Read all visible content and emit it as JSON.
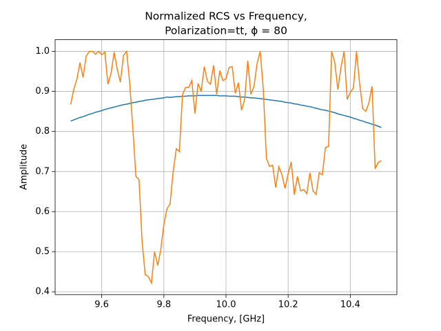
{
  "chart_data": {
    "type": "line",
    "title": [
      "Normalized RCS vs Frequency,",
      "Polarization=tt, ϕ = 80"
    ],
    "x_label": "Frequency, [GHz]",
    "y_label": "Amplitude",
    "x": [
      9.5,
      9.51,
      9.52,
      9.53,
      9.54,
      9.55,
      9.56,
      9.57,
      9.58,
      9.59,
      9.6,
      9.61,
      9.62,
      9.63,
      9.64,
      9.65,
      9.66,
      9.67,
      9.68,
      9.69,
      9.7,
      9.71,
      9.72,
      9.73,
      9.74,
      9.75,
      9.76,
      9.77,
      9.78,
      9.79,
      9.8,
      9.81,
      9.82,
      9.83,
      9.84,
      9.85,
      9.86,
      9.87,
      9.88,
      9.89,
      9.9,
      9.91,
      9.92,
      9.93,
      9.94,
      9.95,
      9.96,
      9.97,
      9.98,
      9.99,
      10.0,
      10.01,
      10.02,
      10.03,
      10.04,
      10.05,
      10.06,
      10.07,
      10.08,
      10.09,
      10.1,
      10.11,
      10.12,
      10.13,
      10.14,
      10.15,
      10.16,
      10.17,
      10.18,
      10.19,
      10.2,
      10.21,
      10.22,
      10.23,
      10.24,
      10.25,
      10.26,
      10.27,
      10.28,
      10.29,
      10.3,
      10.31,
      10.32,
      10.33,
      10.34,
      10.35,
      10.36,
      10.37,
      10.38,
      10.39,
      10.4,
      10.41,
      10.42,
      10.43,
      10.44,
      10.45,
      10.46,
      10.47,
      10.48,
      10.49,
      10.5
    ],
    "series": [
      {
        "color": "#1f77b4",
        "values": [
          0.826,
          0.829,
          0.832,
          0.835,
          0.837,
          0.84,
          0.843,
          0.845,
          0.848,
          0.85,
          0.852,
          0.855,
          0.857,
          0.859,
          0.861,
          0.863,
          0.865,
          0.867,
          0.868,
          0.87,
          0.872,
          0.873,
          0.875,
          0.876,
          0.878,
          0.879,
          0.88,
          0.881,
          0.882,
          0.883,
          0.884,
          0.886,
          0.885,
          0.886,
          0.887,
          0.887,
          0.888,
          0.888,
          0.889,
          0.889,
          0.889,
          0.89,
          0.89,
          0.89,
          0.89,
          0.89,
          0.89,
          0.89,
          0.889,
          0.889,
          0.889,
          0.888,
          0.888,
          0.888,
          0.887,
          0.886,
          0.886,
          0.885,
          0.884,
          0.884,
          0.883,
          0.882,
          0.881,
          0.88,
          0.879,
          0.878,
          0.877,
          0.876,
          0.875,
          0.873,
          0.872,
          0.871,
          0.869,
          0.868,
          0.866,
          0.865,
          0.863,
          0.862,
          0.86,
          0.858,
          0.856,
          0.854,
          0.853,
          0.851,
          0.849,
          0.847,
          0.844,
          0.842,
          0.84,
          0.838,
          0.836,
          0.833,
          0.831,
          0.828,
          0.826,
          0.823,
          0.821,
          0.818,
          0.816,
          0.813,
          0.81
        ]
      },
      {
        "color": "#ff7f0e",
        "values": [
          0.868,
          0.905,
          0.93,
          0.972,
          0.935,
          0.988,
          1.0,
          1.0,
          0.993,
          1.0,
          0.992,
          0.998,
          0.918,
          0.945,
          0.998,
          0.955,
          0.923,
          0.99,
          1.0,
          0.922,
          0.81,
          0.688,
          0.68,
          0.525,
          0.443,
          0.438,
          0.422,
          0.5,
          0.466,
          0.505,
          0.568,
          0.607,
          0.62,
          0.7,
          0.757,
          0.75,
          0.892,
          0.91,
          0.91,
          0.927,
          0.845,
          0.92,
          0.9,
          0.962,
          0.925,
          0.918,
          0.965,
          0.893,
          0.952,
          0.927,
          0.932,
          0.96,
          0.962,
          0.895,
          0.922,
          0.853,
          0.88,
          0.977,
          0.893,
          0.912,
          0.97,
          1.0,
          0.905,
          0.733,
          0.713,
          0.716,
          0.66,
          0.712,
          0.692,
          0.658,
          0.695,
          0.724,
          0.642,
          0.688,
          0.652,
          0.655,
          0.645,
          0.697,
          0.652,
          0.643,
          0.697,
          0.692,
          0.76,
          0.763,
          1.0,
          0.972,
          0.905,
          0.96,
          1.0,
          0.88,
          0.898,
          0.908,
          1.0,
          0.92,
          0.857,
          0.85,
          0.872,
          0.913,
          0.707,
          0.723,
          0.727
        ]
      }
    ],
    "xlim": [
      9.45,
      10.55
    ],
    "ylim": [
      0.393,
      1.029
    ],
    "xticks": [
      9.6,
      9.8,
      {
        "value": 10,
        "label": "10.0"
      },
      10.2,
      10.4
    ],
    "yticks": [
      0.4,
      0.5,
      0.6,
      0.7,
      0.8,
      0.9,
      {
        "value": 1,
        "label": "1.0"
      }
    ],
    "grid": true
  }
}
